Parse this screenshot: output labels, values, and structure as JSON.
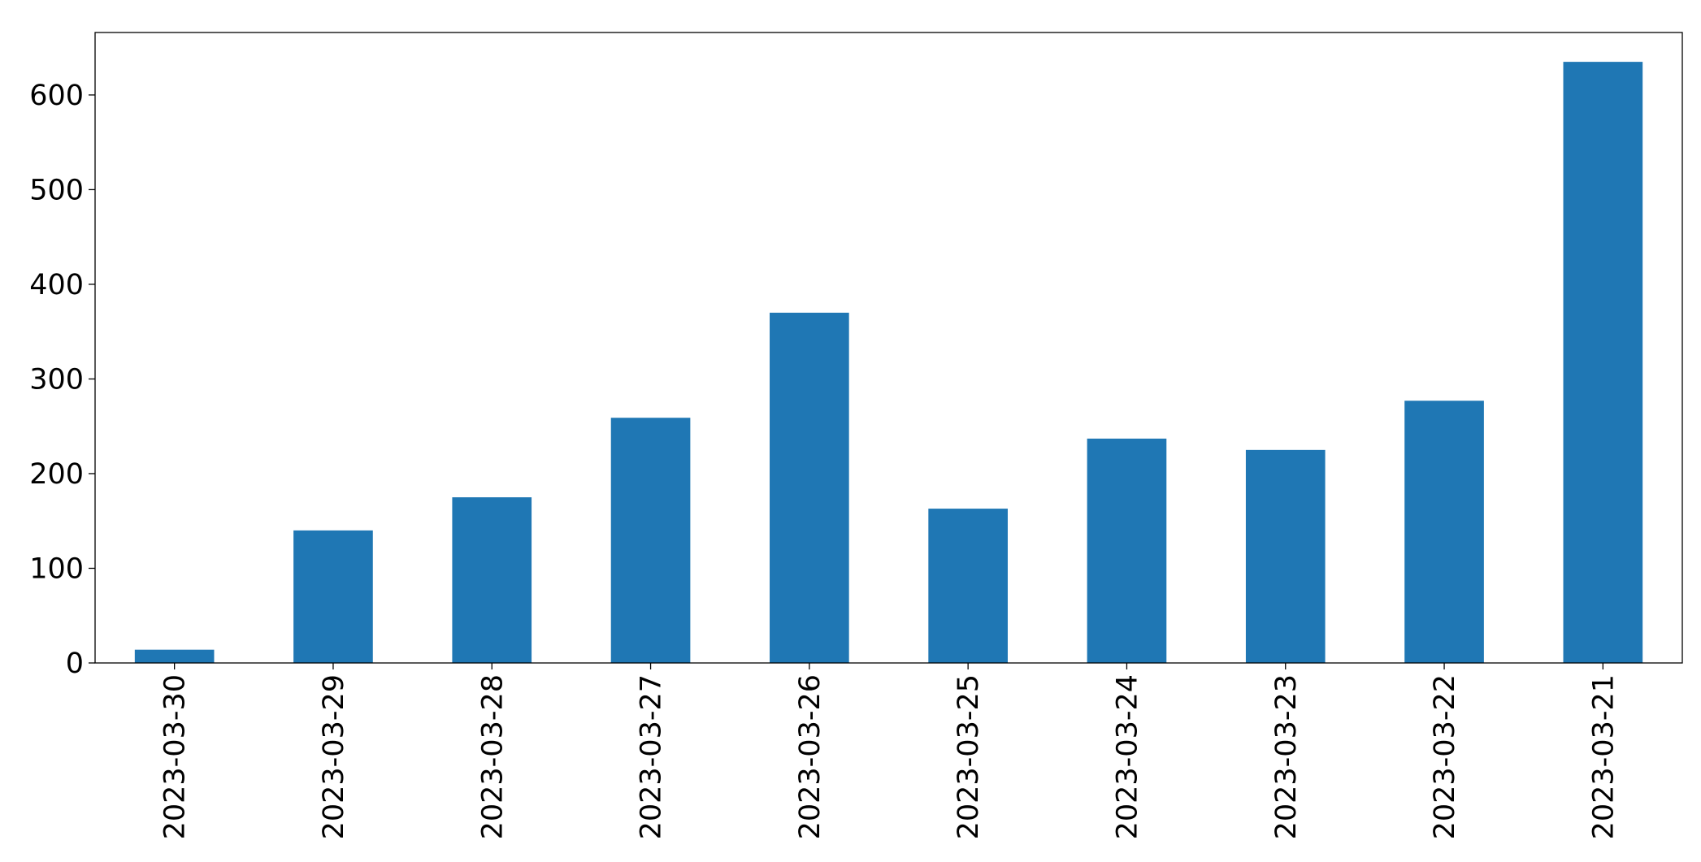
{
  "chart_data": {
    "type": "bar",
    "categories": [
      "2023-03-30",
      "2023-03-29",
      "2023-03-28",
      "2023-03-27",
      "2023-03-26",
      "2023-03-25",
      "2023-03-24",
      "2023-03-23",
      "2023-03-22",
      "2023-03-21"
    ],
    "values": [
      14,
      140,
      175,
      259,
      370,
      163,
      237,
      225,
      277,
      635
    ],
    "color": "#1f77b4",
    "ylim": [
      0,
      666
    ],
    "yticks": [
      0,
      100,
      200,
      300,
      400,
      500,
      600
    ],
    "grid": false
  }
}
